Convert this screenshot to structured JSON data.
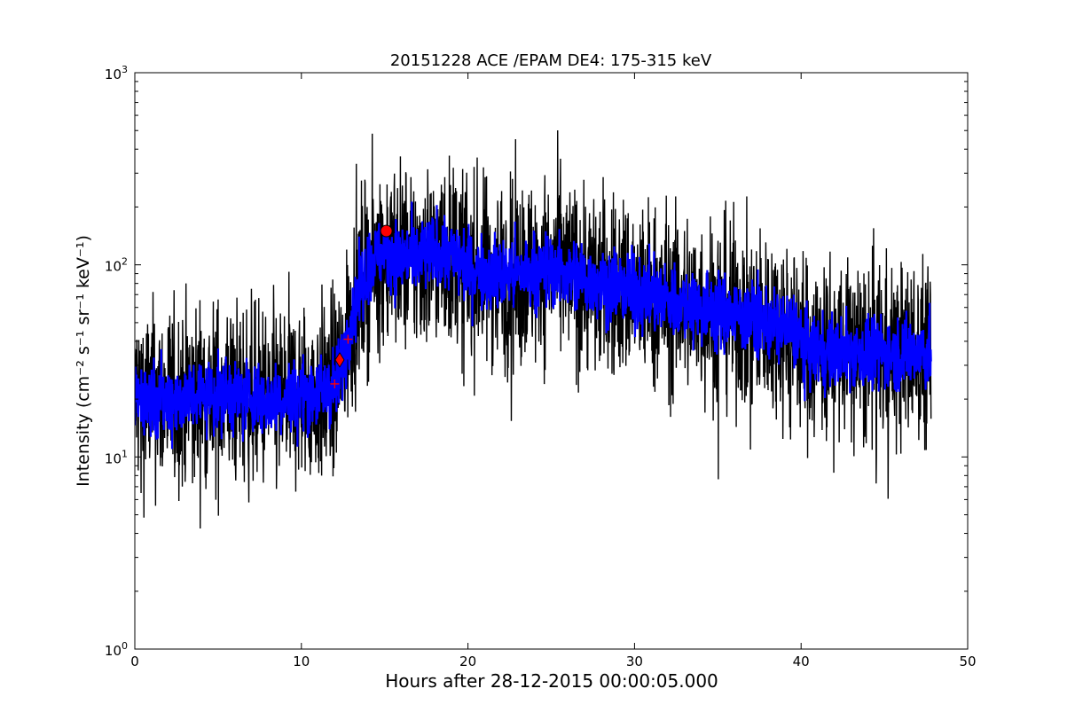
{
  "chart_data": {
    "type": "line",
    "title": "20151228 ACE /EPAM DE4: 175-315 keV",
    "xlabel": "Hours after 28-12-2015 00:00:05.000",
    "ylabel": "Intensity (cm⁻² s⁻¹ sr⁻¹ keV⁻¹)",
    "xlim": [
      0,
      50
    ],
    "ylim": [
      1,
      1000
    ],
    "yscale": "log",
    "grid": false,
    "xticks": [
      0,
      10,
      20,
      30,
      40,
      50
    ],
    "xtick_labels": [
      "0",
      "10",
      "20",
      "30",
      "40",
      "50"
    ],
    "yticks": [
      1,
      10,
      100,
      1000
    ],
    "ytick_labels": [
      {
        "base": "10",
        "exp": "0"
      },
      {
        "base": "10",
        "exp": "1"
      },
      {
        "base": "10",
        "exp": "2"
      },
      {
        "base": "10",
        "exp": "3"
      }
    ],
    "series": [
      {
        "role": "raw",
        "color": "#000000",
        "x": [
          0,
          2,
          4,
          6,
          8,
          10,
          11.5,
          12.2,
          12.6,
          13.0,
          13.5,
          14.0,
          14.5,
          15.0,
          16,
          17,
          18,
          19,
          20,
          21,
          22,
          23,
          24,
          25,
          26,
          28,
          30,
          32,
          34,
          36,
          38,
          39.8,
          40.2,
          42,
          44,
          46,
          47.8
        ],
        "y": [
          21,
          20,
          21,
          21,
          20,
          21,
          22,
          25,
          35,
          55,
          75,
          95,
          110,
          115,
          110,
          108,
          115,
          112,
          98,
          92,
          88,
          90,
          92,
          95,
          90,
          80,
          72,
          65,
          60,
          55,
          50,
          45,
          36,
          35,
          35,
          35,
          35
        ],
        "noise": 0.55
      },
      {
        "role": "smoothed",
        "color": "#0000ff",
        "x": [
          0,
          2,
          4,
          6,
          8,
          10,
          11.5,
          12.2,
          12.6,
          13.0,
          13.5,
          14.0,
          14.5,
          15.0,
          16,
          17,
          18,
          19,
          20,
          21,
          22,
          23,
          24,
          25,
          26,
          28,
          30,
          32,
          34,
          36,
          38,
          39.8,
          40.2,
          42,
          44,
          46,
          47.8
        ],
        "y": [
          21,
          20,
          21,
          21,
          20,
          21,
          22,
          25,
          35,
          55,
          75,
          95,
          110,
          115,
          110,
          108,
          115,
          112,
          98,
          92,
          88,
          90,
          92,
          95,
          90,
          80,
          72,
          65,
          60,
          55,
          50,
          45,
          36,
          35,
          35,
          35,
          35
        ],
        "noise": 0.22
      }
    ],
    "markers": [
      {
        "shape": "circle",
        "x": 15.1,
        "y": 150,
        "color": "#ff0000"
      },
      {
        "shape": "diamond",
        "x": 12.3,
        "y": 32,
        "color": "#ff0000"
      },
      {
        "shape": "plus",
        "x": 12.8,
        "y": 41,
        "color": "#ff0000"
      },
      {
        "shape": "plus",
        "x": 12.0,
        "y": 24,
        "color": "#ff0000"
      }
    ]
  }
}
